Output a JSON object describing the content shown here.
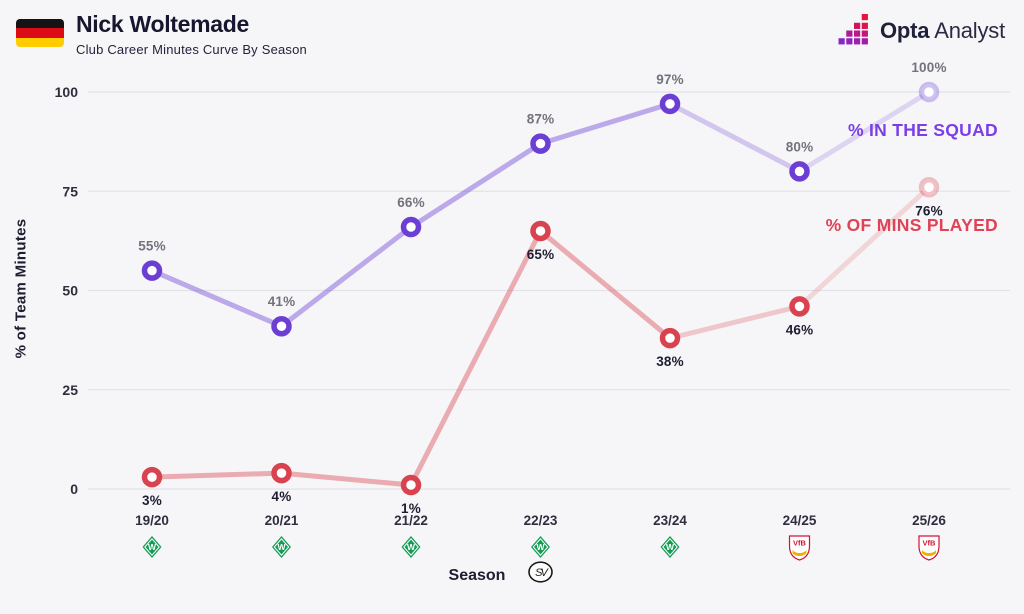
{
  "header": {
    "title": "Nick Woltemade",
    "subtitle": "Club Career Minutes Curve By Season",
    "flag": "germany-flag",
    "brand": {
      "name_bold": "Opta",
      "name_light": "Analyst"
    }
  },
  "chart_data": {
    "type": "line",
    "title": "Club Career Minutes Curve By Season",
    "xlabel": "Season",
    "ylabel": "% of Team Minutes",
    "ylim": [
      0,
      100
    ],
    "y_ticks": [
      0,
      25,
      50,
      75,
      100
    ],
    "grid": "horizontal",
    "legend_position": "inline-right",
    "categories": [
      "19/20",
      "20/21",
      "21/22",
      "22/23",
      "23/24",
      "24/25",
      "25/26"
    ],
    "club_logos": [
      [
        "werder-bremen"
      ],
      [
        "werder-bremen"
      ],
      [
        "werder-bremen"
      ],
      [
        "werder-bremen",
        "sv-elversberg"
      ],
      [
        "werder-bremen"
      ],
      [
        "vfb-stuttgart"
      ],
      [
        "vfb-stuttgart"
      ]
    ],
    "series": [
      {
        "name": "% IN THE SQUAD",
        "color": "#6b3fd4",
        "label_color": "#73737e",
        "values": [
          55,
          41,
          66,
          87,
          97,
          80,
          100
        ]
      },
      {
        "name": "% OF MINS PLAYED",
        "color": "#d8434f",
        "label_color": "#1e1e32",
        "values": [
          3,
          4,
          1,
          65,
          38,
          46,
          76
        ]
      }
    ],
    "last_point_faded": true
  },
  "colors": {
    "background": "#f6f6f8",
    "grid": "#e3e3e7",
    "tick_label": "#2e2e3e",
    "season_label": "#2e2e3e",
    "accent_purple": "#6b3fd4",
    "accent_red": "#d8434f",
    "legend_purple": "#7b3fe4",
    "legend_red": "#e04356",
    "point_label_gray": "#73737e",
    "point_label_dark": "#1e1e32",
    "werder_green": "#169c55",
    "stuttgart_red": "#d01331",
    "stuttgart_yellow": "#e9b400"
  }
}
